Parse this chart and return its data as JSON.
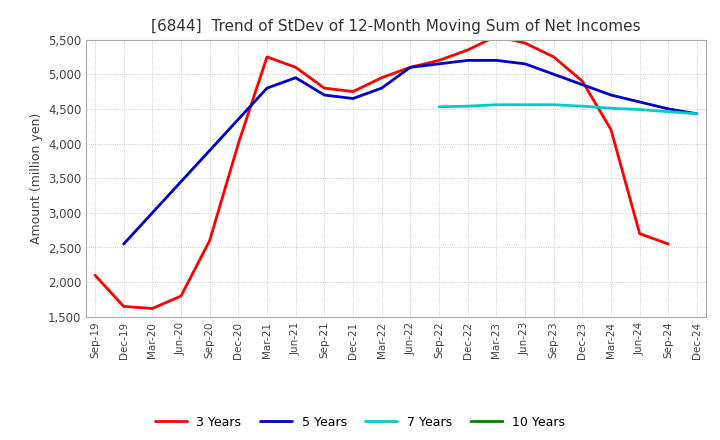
{
  "title": "[6844]  Trend of StDev of 12-Month Moving Sum of Net Incomes",
  "ylabel": "Amount (million yen)",
  "ylim": [
    1500,
    5500
  ],
  "yticks": [
    1500,
    2000,
    2500,
    3000,
    3500,
    4000,
    4500,
    5000,
    5500
  ],
  "background_color": "#ffffff",
  "grid_color": "#bbbbbb",
  "series": {
    "3 Years": {
      "color": "#ff0000",
      "data": [
        [
          "Sep-19",
          2100
        ],
        [
          "Dec-19",
          1650
        ],
        [
          "Mar-20",
          1620
        ],
        [
          "Jun-20",
          1800
        ],
        [
          "Sep-20",
          2600
        ],
        [
          "Dec-20",
          4000
        ],
        [
          "Mar-21",
          5250
        ],
        [
          "Jun-21",
          5100
        ],
        [
          "Sep-21",
          4800
        ],
        [
          "Dec-21",
          4750
        ],
        [
          "Mar-22",
          4950
        ],
        [
          "Jun-22",
          5100
        ],
        [
          "Sep-22",
          5200
        ],
        [
          "Dec-22",
          5350
        ],
        [
          "Mar-23",
          5550
        ],
        [
          "Jun-23",
          5450
        ],
        [
          "Sep-23",
          5250
        ],
        [
          "Dec-23",
          4900
        ],
        [
          "Mar-24",
          4200
        ],
        [
          "Jun-24",
          2700
        ],
        [
          "Sep-24",
          2550
        ],
        [
          "Dec-24",
          null
        ]
      ]
    },
    "5 Years": {
      "color": "#0000cc",
      "data": [
        [
          "Sep-19",
          null
        ],
        [
          "Dec-19",
          2550
        ],
        [
          "Mar-20",
          null
        ],
        [
          "Jun-20",
          null
        ],
        [
          "Sep-20",
          null
        ],
        [
          "Dec-20",
          null
        ],
        [
          "Mar-21",
          4800
        ],
        [
          "Jun-21",
          4950
        ],
        [
          "Sep-21",
          4700
        ],
        [
          "Dec-21",
          4650
        ],
        [
          "Mar-22",
          4800
        ],
        [
          "Jun-22",
          5100
        ],
        [
          "Sep-22",
          5150
        ],
        [
          "Dec-22",
          5200
        ],
        [
          "Mar-23",
          5200
        ],
        [
          "Jun-23",
          5150
        ],
        [
          "Sep-23",
          5000
        ],
        [
          "Dec-23",
          4850
        ],
        [
          "Mar-24",
          4700
        ],
        [
          "Jun-24",
          4600
        ],
        [
          "Sep-24",
          4500
        ],
        [
          "Dec-24",
          4430
        ]
      ]
    },
    "7 Years": {
      "color": "#00cccc",
      "data": [
        [
          "Sep-19",
          null
        ],
        [
          "Dec-19",
          null
        ],
        [
          "Mar-20",
          null
        ],
        [
          "Jun-20",
          null
        ],
        [
          "Sep-20",
          null
        ],
        [
          "Dec-20",
          null
        ],
        [
          "Mar-21",
          null
        ],
        [
          "Jun-21",
          null
        ],
        [
          "Sep-21",
          null
        ],
        [
          "Dec-21",
          null
        ],
        [
          "Mar-22",
          null
        ],
        [
          "Jun-22",
          null
        ],
        [
          "Sep-22",
          4530
        ],
        [
          "Dec-22",
          4540
        ],
        [
          "Mar-23",
          4560
        ],
        [
          "Jun-23",
          4560
        ],
        [
          "Sep-23",
          4560
        ],
        [
          "Dec-23",
          4540
        ],
        [
          "Mar-24",
          4510
        ],
        [
          "Jun-24",
          4490
        ],
        [
          "Sep-24",
          4460
        ],
        [
          "Dec-24",
          4430
        ]
      ]
    },
    "10 Years": {
      "color": "#008000",
      "data": [
        [
          "Sep-19",
          null
        ],
        [
          "Dec-19",
          null
        ],
        [
          "Mar-20",
          null
        ],
        [
          "Jun-20",
          null
        ],
        [
          "Sep-20",
          null
        ],
        [
          "Dec-20",
          null
        ],
        [
          "Mar-21",
          null
        ],
        [
          "Jun-21",
          null
        ],
        [
          "Sep-21",
          null
        ],
        [
          "Dec-21",
          null
        ],
        [
          "Mar-22",
          null
        ],
        [
          "Jun-22",
          null
        ],
        [
          "Sep-22",
          null
        ],
        [
          "Dec-22",
          null
        ],
        [
          "Mar-23",
          null
        ],
        [
          "Jun-23",
          null
        ],
        [
          "Sep-23",
          null
        ],
        [
          "Dec-23",
          null
        ],
        [
          "Mar-24",
          null
        ],
        [
          "Jun-24",
          null
        ],
        [
          "Sep-24",
          null
        ],
        [
          "Dec-24",
          null
        ]
      ]
    }
  },
  "xtick_labels": [
    "Sep-19",
    "Dec-19",
    "Mar-20",
    "Jun-20",
    "Sep-20",
    "Dec-20",
    "Mar-21",
    "Jun-21",
    "Sep-21",
    "Dec-21",
    "Mar-22",
    "Jun-22",
    "Sep-22",
    "Dec-22",
    "Mar-23",
    "Jun-23",
    "Sep-23",
    "Dec-23",
    "Mar-24",
    "Jun-24",
    "Sep-24",
    "Dec-24"
  ]
}
